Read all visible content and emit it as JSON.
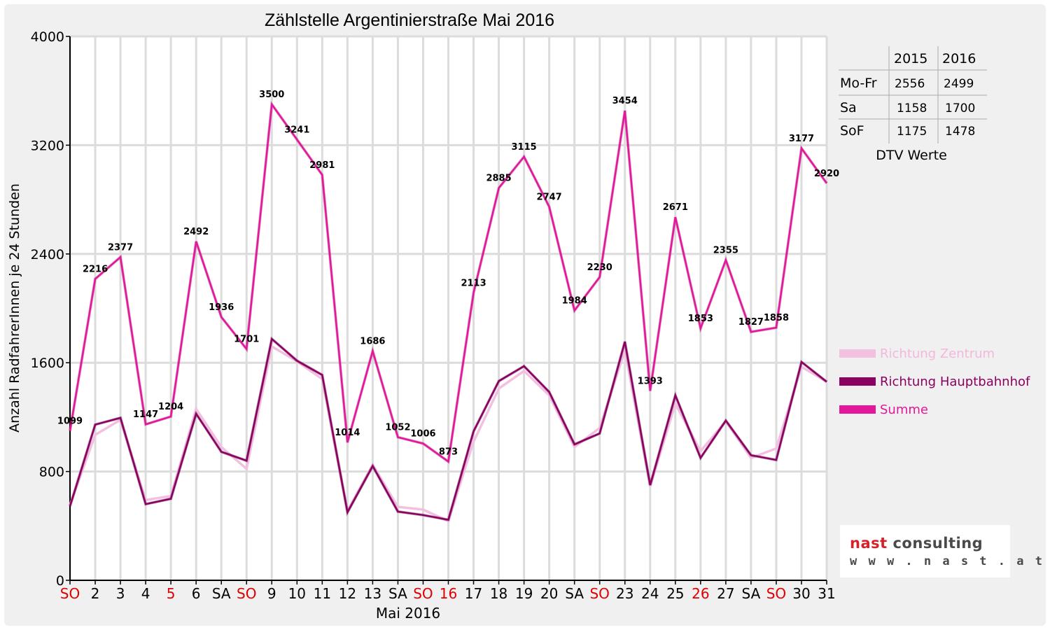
{
  "chart_data": {
    "type": "line",
    "title": "Zählstelle Argentinierstraße Mai 2016",
    "xlabel": "Mai 2016",
    "ylabel": "Anzahl RadfahrerInnen je 24 Stunden",
    "ylim": [
      0,
      4000
    ],
    "yticks": [
      0,
      800,
      1600,
      2400,
      3200,
      4000
    ],
    "grid": true,
    "legend_position": "right",
    "categories": [
      "SO",
      "2",
      "3",
      "4",
      "5",
      "6",
      "SA",
      "SO",
      "9",
      "10",
      "11",
      "12",
      "13",
      "SA",
      "SO",
      "16",
      "17",
      "18",
      "19",
      "20",
      "SA",
      "SO",
      "23",
      "24",
      "25",
      "26",
      "27",
      "SA",
      "SO",
      "30",
      "31"
    ],
    "category_colors": [
      "#e00000",
      "#000000",
      "#000000",
      "#000000",
      "#e00000",
      "#000000",
      "#000000",
      "#e00000",
      "#000000",
      "#000000",
      "#000000",
      "#000000",
      "#000000",
      "#000000",
      "#e00000",
      "#e00000",
      "#000000",
      "#000000",
      "#000000",
      "#000000",
      "#000000",
      "#e00000",
      "#000000",
      "#000000",
      "#000000",
      "#e00000",
      "#000000",
      "#000000",
      "#e00000",
      "#000000",
      "#000000"
    ],
    "series": [
      {
        "name": "Richtung Zentrum",
        "color": "#f2c0e0",
        "values": [
          555,
          1070,
          1180,
          590,
          620,
          1260,
          980,
          820,
          1720,
          1610,
          1480,
          510,
          850,
          540,
          520,
          435,
          1020,
          1410,
          1540,
          1360,
          980,
          1120,
          1690,
          690,
          1300,
          950,
          1170,
          900,
          970,
          1570,
          1460
        ]
      },
      {
        "name": "Richtung Hauptbahnhof",
        "color": "#8b0060",
        "values": [
          545,
          1145,
          1195,
          560,
          600,
          1225,
          945,
          880,
          1775,
          1615,
          1510,
          500,
          840,
          505,
          480,
          445,
          1095,
          1465,
          1575,
          1385,
          1000,
          1080,
          1755,
          700,
          1360,
          900,
          1175,
          920,
          885,
          1605,
          1460
        ]
      },
      {
        "name": "Summe",
        "color": "#e2179c",
        "values": [
          1099,
          2216,
          2377,
          1147,
          1204,
          2492,
          1936,
          1701,
          3500,
          3241,
          2981,
          1014,
          1686,
          1052,
          1006,
          873,
          2113,
          2885,
          3115,
          2747,
          1984,
          2230,
          3454,
          1393,
          2671,
          1853,
          2355,
          1827,
          1858,
          3177,
          2920
        ]
      }
    ],
    "data_labels": [
      "1099",
      "2216",
      "2377",
      "1147",
      "1204",
      "2492",
      "1936",
      "1701",
      "3500",
      "3241",
      "2981",
      "1014",
      "1686",
      "1052",
      "1006",
      "873",
      "2113",
      "2885",
      "3115",
      "2747",
      "1984",
      "2230",
      "3454",
      "1393",
      "2671",
      "1853",
      "2355",
      "1827",
      "1858",
      "3177",
      "2920"
    ]
  },
  "dtv_table": {
    "header": [
      "",
      "2015",
      "2016"
    ],
    "rows": [
      [
        "Mo-Fr",
        "2556",
        "2499"
      ],
      [
        "Sa",
        "1158",
        "1700"
      ],
      [
        "SoF",
        "1175",
        "1478"
      ]
    ],
    "caption": "DTV Werte"
  },
  "logo": {
    "brand_name": "nast",
    "brand_suffix": "consulting",
    "url_text": "w w w . n a s t . a t"
  }
}
